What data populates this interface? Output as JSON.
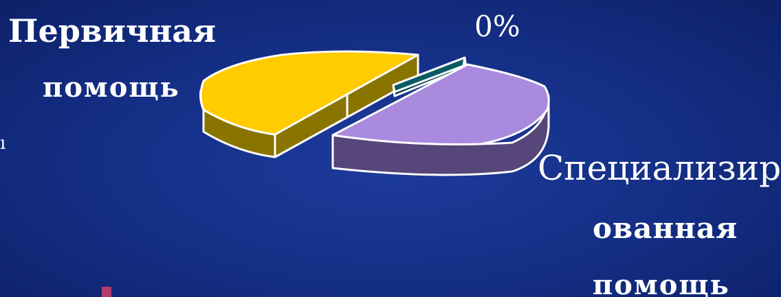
{
  "chart_data": {
    "type": "pie",
    "slices": [
      {
        "label_lines": [
          "Первичная",
          "помощь"
        ],
        "color": "#ffcc00",
        "side_color": "#8a7400"
      },
      {
        "label_lines": [
          "0%"
        ],
        "color": "#0b5a66",
        "side_color": "#073f48"
      },
      {
        "label_lines": [
          "Специализир",
          "ованная",
          "помощь"
        ],
        "color": "#a98ade",
        "side_color": "#56467a"
      }
    ]
  },
  "fragments": {
    "left_edge_glyph": "ı"
  },
  "colors": {
    "background": "#142e84",
    "outline": "#ffffff",
    "edge_marker": "#b23c6e"
  }
}
